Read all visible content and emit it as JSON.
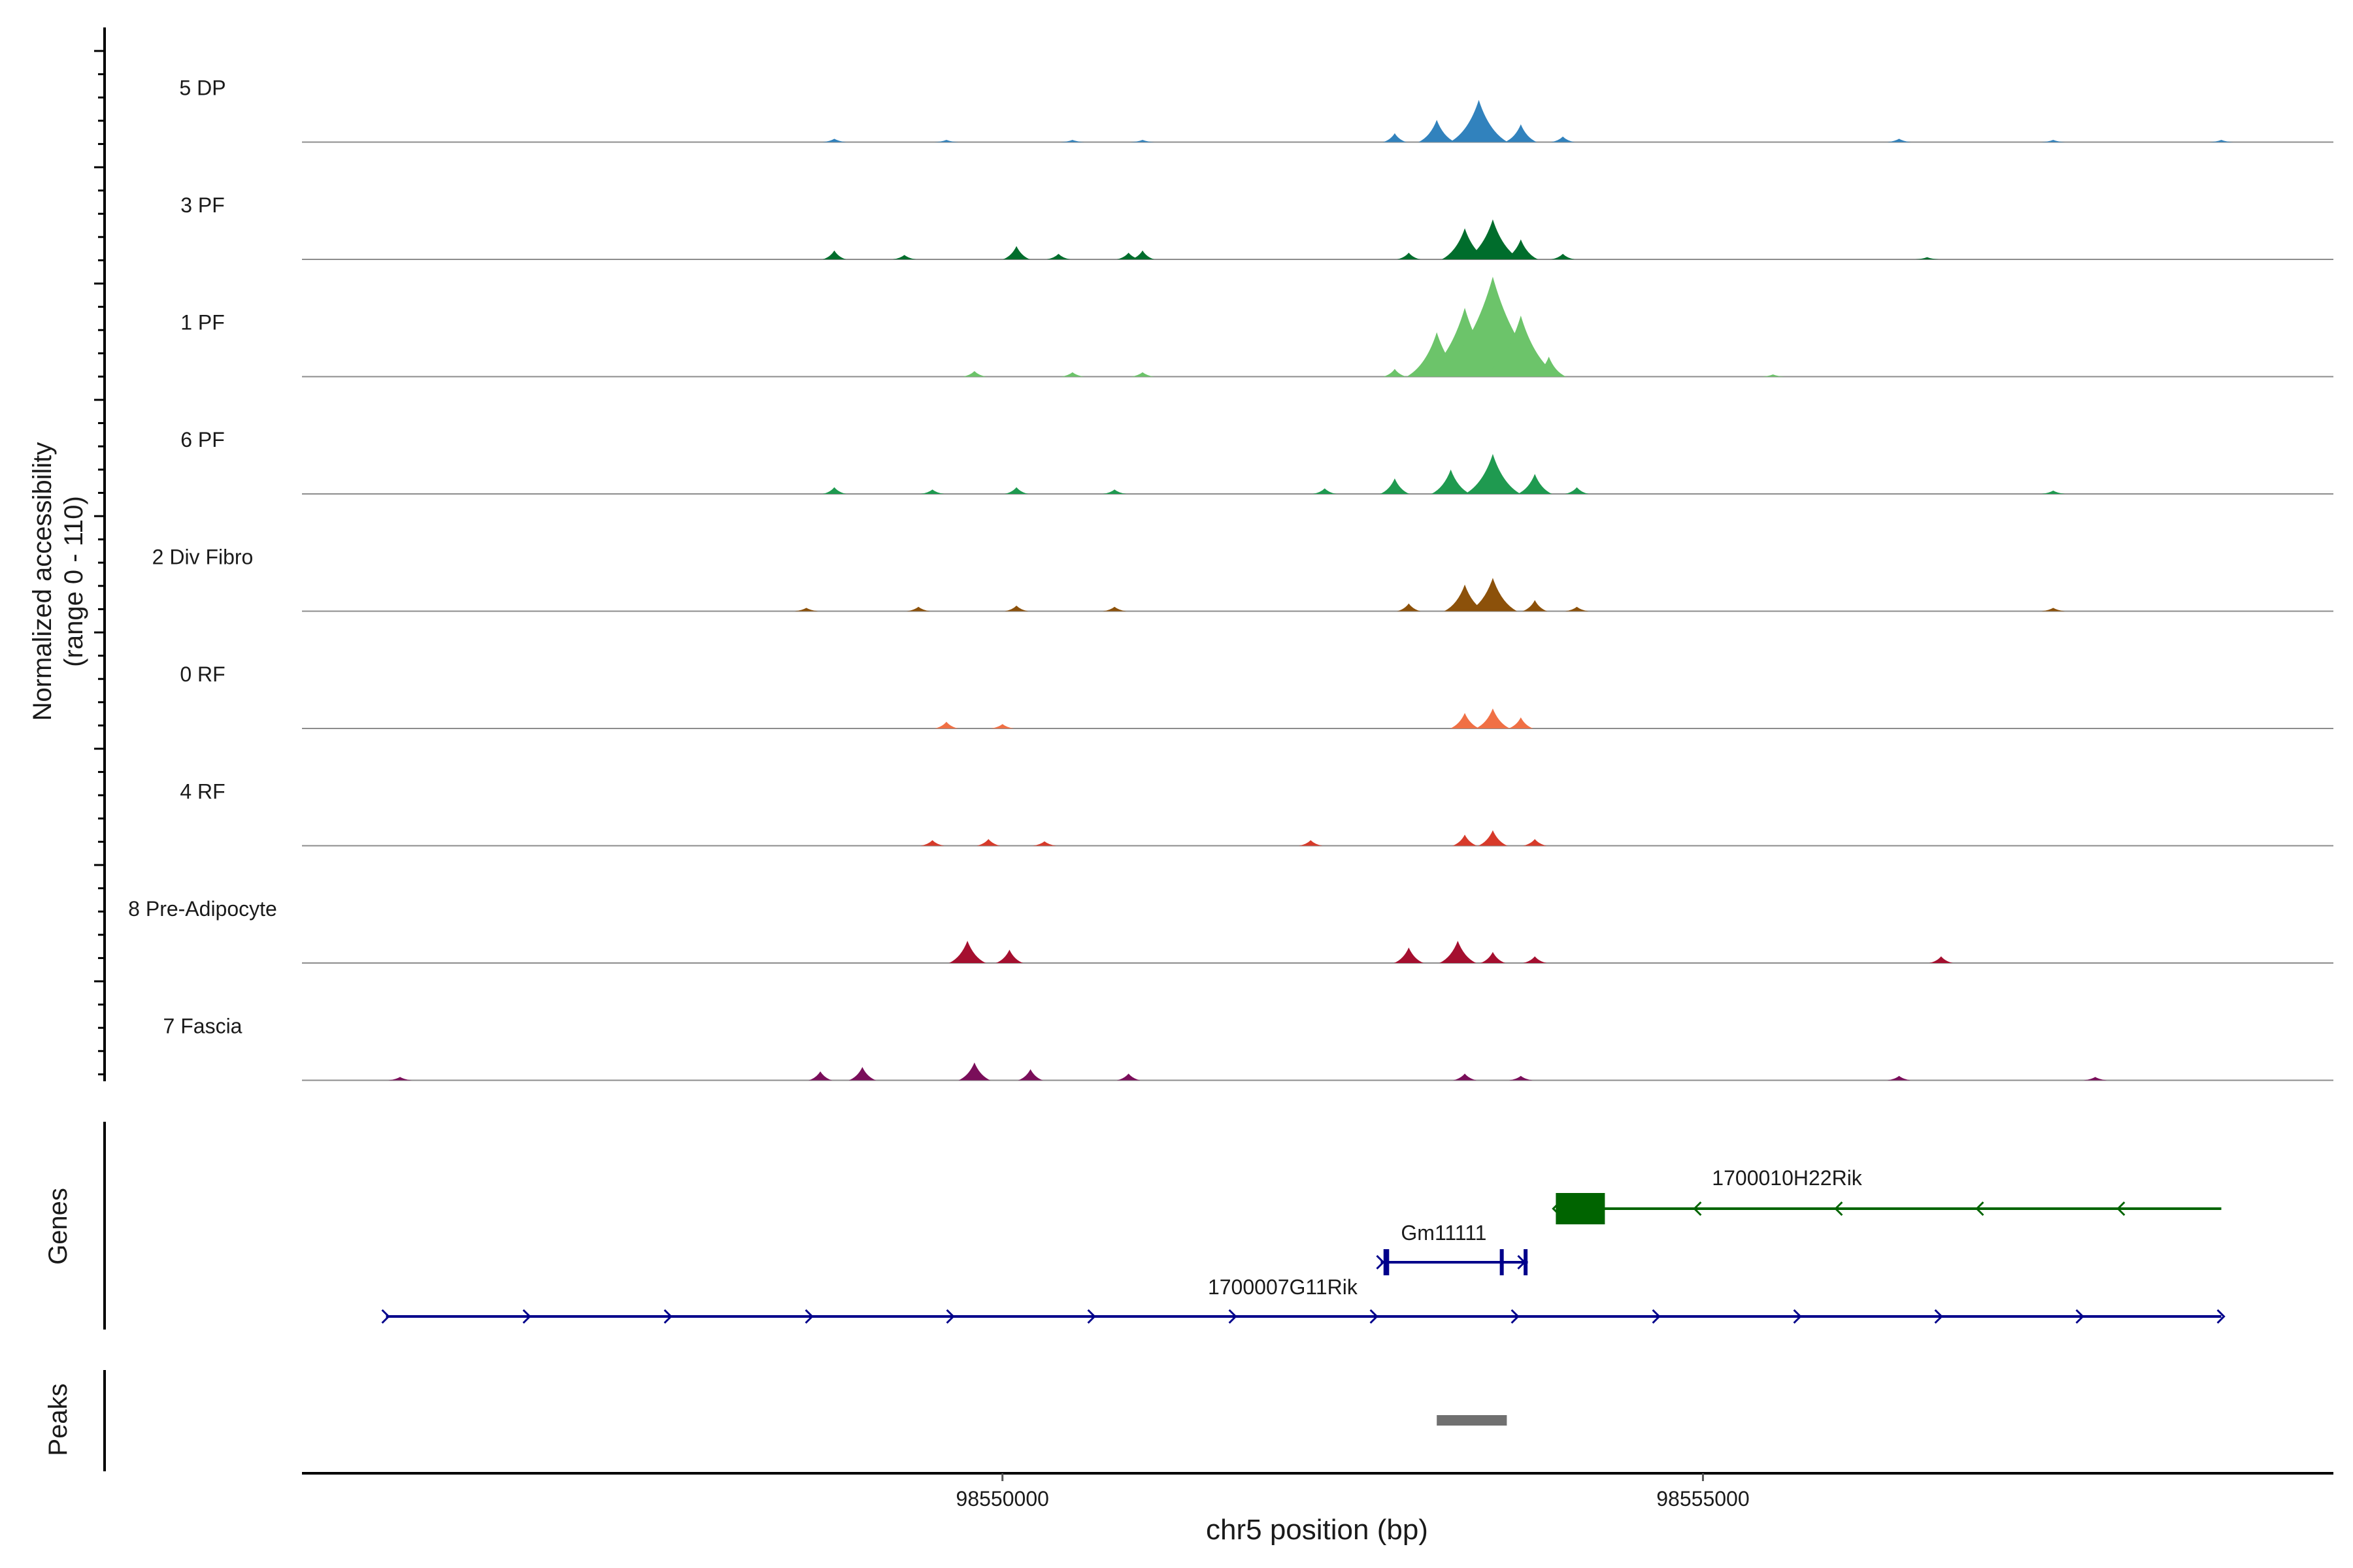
{
  "chart_data": {
    "type": "area",
    "y_axis": {
      "label_line1": "Normalized accessibility",
      "label_line2": "(range 0 - 110)",
      "range": [
        0,
        110
      ]
    },
    "x_axis": {
      "label": "chr5 position (bp)",
      "range": [
        98545000,
        98559500
      ],
      "ticks": [
        {
          "value": 98550000,
          "label": "98550000"
        },
        {
          "value": 98555000,
          "label": "98555000"
        }
      ]
    },
    "series": [
      {
        "name": "5 DP",
        "color": "#3182bd",
        "peaks": [
          {
            "x": 98548800,
            "h": 3
          },
          {
            "x": 98549600,
            "h": 2
          },
          {
            "x": 98550500,
            "h": 2
          },
          {
            "x": 98551000,
            "h": 2
          },
          {
            "x": 98552800,
            "h": 8
          },
          {
            "x": 98553100,
            "h": 20
          },
          {
            "x": 98553400,
            "h": 38
          },
          {
            "x": 98553700,
            "h": 16
          },
          {
            "x": 98554000,
            "h": 5
          },
          {
            "x": 98556400,
            "h": 3
          },
          {
            "x": 98557500,
            "h": 2
          },
          {
            "x": 98558700,
            "h": 2
          }
        ]
      },
      {
        "name": "3 PF",
        "color": "#006d2c",
        "peaks": [
          {
            "x": 98548800,
            "h": 8
          },
          {
            "x": 98549300,
            "h": 4
          },
          {
            "x": 98550100,
            "h": 12
          },
          {
            "x": 98550400,
            "h": 5
          },
          {
            "x": 98550900,
            "h": 6
          },
          {
            "x": 98551000,
            "h": 8
          },
          {
            "x": 98552900,
            "h": 6
          },
          {
            "x": 98553300,
            "h": 28
          },
          {
            "x": 98553500,
            "h": 36
          },
          {
            "x": 98553700,
            "h": 18
          },
          {
            "x": 98554000,
            "h": 5
          },
          {
            "x": 98556600,
            "h": 2
          }
        ]
      },
      {
        "name": "1 PF",
        "color": "#6cc46a",
        "peaks": [
          {
            "x": 98549800,
            "h": 5
          },
          {
            "x": 98550500,
            "h": 4
          },
          {
            "x": 98551000,
            "h": 4
          },
          {
            "x": 98552800,
            "h": 7
          },
          {
            "x": 98553100,
            "h": 40
          },
          {
            "x": 98553300,
            "h": 62
          },
          {
            "x": 98553500,
            "h": 90
          },
          {
            "x": 98553700,
            "h": 55
          },
          {
            "x": 98553900,
            "h": 18
          },
          {
            "x": 98555500,
            "h": 2
          }
        ]
      },
      {
        "name": "6 PF",
        "color": "#1f9a50",
        "peaks": [
          {
            "x": 98548800,
            "h": 6
          },
          {
            "x": 98549500,
            "h": 4
          },
          {
            "x": 98550100,
            "h": 6
          },
          {
            "x": 98550800,
            "h": 4
          },
          {
            "x": 98552300,
            "h": 5
          },
          {
            "x": 98552800,
            "h": 14
          },
          {
            "x": 98553200,
            "h": 22
          },
          {
            "x": 98553500,
            "h": 36
          },
          {
            "x": 98553800,
            "h": 18
          },
          {
            "x": 98554100,
            "h": 6
          },
          {
            "x": 98557500,
            "h": 3
          }
        ]
      },
      {
        "name": "2 Div Fibro",
        "color": "#8c510a",
        "peaks": [
          {
            "x": 98548600,
            "h": 3
          },
          {
            "x": 98549400,
            "h": 4
          },
          {
            "x": 98550100,
            "h": 5
          },
          {
            "x": 98550800,
            "h": 4
          },
          {
            "x": 98552900,
            "h": 7
          },
          {
            "x": 98553300,
            "h": 24
          },
          {
            "x": 98553500,
            "h": 30
          },
          {
            "x": 98553800,
            "h": 10
          },
          {
            "x": 98554100,
            "h": 4
          },
          {
            "x": 98557500,
            "h": 3
          }
        ]
      },
      {
        "name": "0 RF",
        "color": "#f07045",
        "peaks": [
          {
            "x": 98549600,
            "h": 6
          },
          {
            "x": 98550000,
            "h": 4
          },
          {
            "x": 98553300,
            "h": 14
          },
          {
            "x": 98553500,
            "h": 18
          },
          {
            "x": 98553700,
            "h": 10
          }
        ]
      },
      {
        "name": "4 RF",
        "color": "#d73a2a",
        "peaks": [
          {
            "x": 98549500,
            "h": 5
          },
          {
            "x": 98549900,
            "h": 6
          },
          {
            "x": 98550300,
            "h": 4
          },
          {
            "x": 98552200,
            "h": 5
          },
          {
            "x": 98553300,
            "h": 10
          },
          {
            "x": 98553500,
            "h": 14
          },
          {
            "x": 98553800,
            "h": 6
          }
        ]
      },
      {
        "name": "8 Pre-Adipocyte",
        "color": "#a50f2f",
        "peaks": [
          {
            "x": 98549750,
            "h": 20
          },
          {
            "x": 98550050,
            "h": 12
          },
          {
            "x": 98552900,
            "h": 14
          },
          {
            "x": 98553250,
            "h": 20
          },
          {
            "x": 98553500,
            "h": 10
          },
          {
            "x": 98553800,
            "h": 6
          },
          {
            "x": 98556700,
            "h": 6
          }
        ]
      },
      {
        "name": "7 Fascia",
        "color": "#7a0e5a",
        "peaks": [
          {
            "x": 98545700,
            "h": 3
          },
          {
            "x": 98548700,
            "h": 8
          },
          {
            "x": 98549000,
            "h": 12
          },
          {
            "x": 98549800,
            "h": 16
          },
          {
            "x": 98550200,
            "h": 10
          },
          {
            "x": 98550900,
            "h": 6
          },
          {
            "x": 98553300,
            "h": 6
          },
          {
            "x": 98553700,
            "h": 4
          },
          {
            "x": 98556400,
            "h": 4
          },
          {
            "x": 98557800,
            "h": 3
          }
        ]
      }
    ],
    "genes_track": {
      "label": "Genes",
      "genes": [
        {
          "name": "1700010H22Rik",
          "start": 98553950,
          "end": 98558700,
          "strand": "-",
          "color": "#006400",
          "exons": [
            [
              98553950,
              98554300
            ]
          ]
        },
        {
          "name": "Gm11111",
          "start": 98552700,
          "end": 98553750,
          "strand": "+",
          "color": "#00008b",
          "exons": [
            [
              98552720,
              98552760
            ],
            [
              98553550,
              98553570
            ],
            [
              98553720,
              98553740
            ]
          ]
        },
        {
          "name": "1700007G11Rik",
          "start": 98545600,
          "end": 98558700,
          "strand": "+",
          "color": "#00008b",
          "exons": []
        }
      ]
    },
    "peaks_track": {
      "label": "Peaks",
      "color": "#707070",
      "regions": [
        [
          98553100,
          98553600
        ]
      ]
    }
  }
}
